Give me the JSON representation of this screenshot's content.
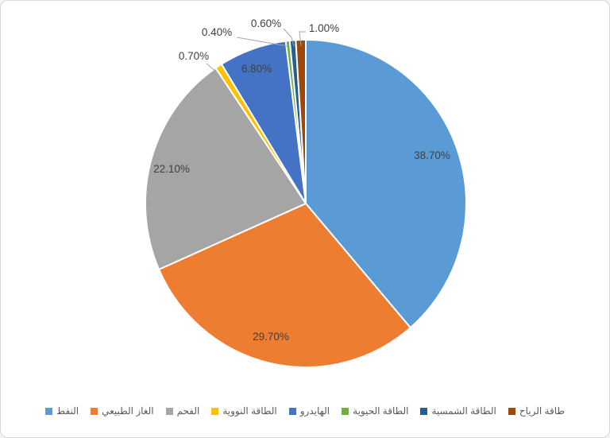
{
  "chart_data": {
    "type": "pie",
    "title": "",
    "legend_position": "bottom",
    "start_angle_deg": 0,
    "direction": "clockwise",
    "slices": [
      {
        "label": "النفط",
        "value": 38.7,
        "percent_label": "38.70%",
        "color": "#5B9BD5",
        "label_placement": "inside"
      },
      {
        "label": "الغاز الطبيعي",
        "value": 29.7,
        "percent_label": "29.70%",
        "color": "#ED7D31",
        "label_placement": "inside"
      },
      {
        "label": "الفحم",
        "value": 22.1,
        "percent_label": "22.10%",
        "color": "#A5A5A5",
        "label_placement": "inside"
      },
      {
        "label": "الطاقة النووية",
        "value": 0.7,
        "percent_label": "0.70%",
        "color": "#FFC000",
        "label_placement": "callout"
      },
      {
        "label": "الهايدرو",
        "value": 6.8,
        "percent_label": "6.80%",
        "color": "#4472C4",
        "label_placement": "inside"
      },
      {
        "label": "الطاقة الحيوية",
        "value": 0.4,
        "percent_label": "0.40%",
        "color": "#70AD47",
        "label_placement": "callout"
      },
      {
        "label": "الطاقة الشمسية",
        "value": 0.6,
        "percent_label": "0.60%",
        "color": "#255E91",
        "label_placement": "callout"
      },
      {
        "label": "طاقة الرياح",
        "value": 1.0,
        "percent_label": "1.00%",
        "color": "#9E480E",
        "label_placement": "callout"
      }
    ],
    "colors": {
      "label_text": "#404040",
      "legend_text": "#595959",
      "leader_line": "#A6A6A6",
      "slice_border": "#FFFFFF",
      "background": "#FFFFFF",
      "frame_border": "#D9D9D9"
    }
  }
}
